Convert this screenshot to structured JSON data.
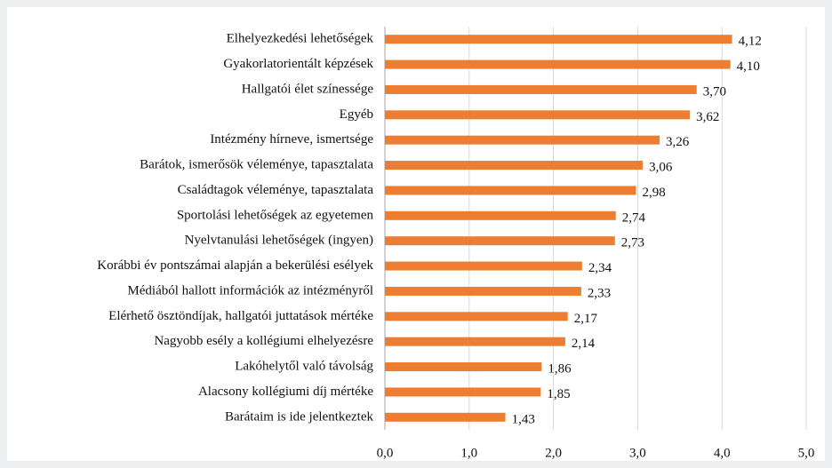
{
  "chart_data": {
    "type": "barh",
    "categories": [
      "Elhelyezkedési lehetőségek",
      "Gyakorlatorientált képzések",
      "Hallgatói élet színessége",
      "Egyéb",
      "Intézmény hírneve, ismertsége",
      "Barátok, ismerősök véleménye, tapasztalata",
      "Családtagok véleménye, tapasztalata",
      "Sportolási lehetőségek az egyetemen",
      "Nyelvtanulási lehetőségek (ingyen)",
      "Korábbi év pontszámai alapján a bekerülési esélyek",
      "Médiából hallott információk az intézményről",
      "Elérhető ösztöndíjak, hallgatói juttatások mértéke",
      "Nagyobb esély a kollégiumi elhelyezésre",
      "Lakóhelytől való távolság",
      "Alacsony kollégiumi díj mértéke",
      "Barátaim is ide jelentkeztek"
    ],
    "values": [
      4.12,
      4.1,
      3.7,
      3.62,
      3.26,
      3.06,
      2.98,
      2.74,
      2.73,
      2.34,
      2.33,
      2.17,
      2.14,
      1.86,
      1.85,
      1.43
    ],
    "value_labels": [
      "4,12",
      "4,10",
      "3,70",
      "3,62",
      "3,26",
      "3,06",
      "2,98",
      "2,74",
      "2,73",
      "2,34",
      "2,33",
      "2,17",
      "2,14",
      "1,86",
      "1,85",
      "1,43"
    ],
    "color": "#ed7d31",
    "xlim": [
      0,
      5
    ],
    "xticks": [
      {
        "value": 0,
        "label": "0,0"
      },
      {
        "value": 1,
        "label": "1,0"
      },
      {
        "value": 2,
        "label": "2,0"
      },
      {
        "value": 3,
        "label": "3,0"
      },
      {
        "value": 4,
        "label": "4,0"
      },
      {
        "value": 5,
        "label": "5,0"
      }
    ],
    "grid": true
  }
}
